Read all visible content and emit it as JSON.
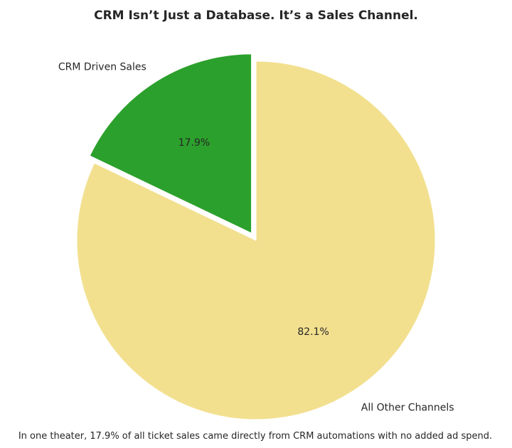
{
  "chart_data": {
    "type": "pie",
    "title": "CRM Isn’t Just a Database. It’s a Sales Channel.",
    "categories": [
      "CRM Driven Sales",
      "All Other Channels"
    ],
    "values": [
      17.9,
      82.1
    ],
    "value_labels": [
      "17.9%",
      "82.1%"
    ],
    "colors": [
      "#2ca02c",
      "#f2e08f"
    ],
    "exploded": [
      true,
      false
    ],
    "start_angle_deg": 90,
    "direction": "counterclockwise",
    "legend": "none",
    "footnote": "In one theater, 17.9% of all ticket sales came directly from CRM automations with no added ad spend."
  }
}
